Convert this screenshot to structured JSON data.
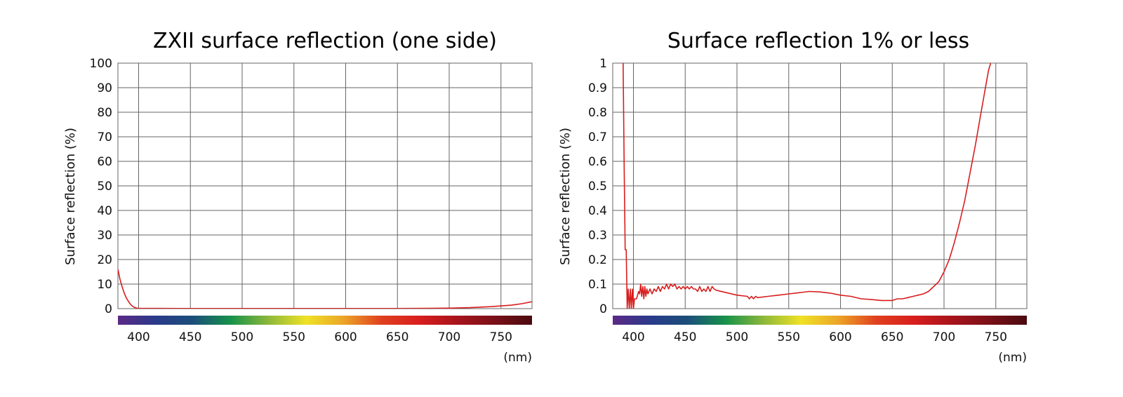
{
  "chart_data": [
    {
      "type": "line",
      "title": "ZXII surface reflection (one side)",
      "ylabel": "Surface reflection (%)",
      "xunit": "(nm)",
      "xlim": [
        380,
        780
      ],
      "ylim": [
        0,
        100
      ],
      "xticks": [
        400,
        450,
        500,
        550,
        600,
        650,
        700,
        750
      ],
      "yticks": [
        0,
        10,
        20,
        30,
        40,
        50,
        60,
        70,
        80,
        90,
        100
      ],
      "grid": true,
      "color": "#d81e1e",
      "spectrum_bar": true,
      "series": [
        {
          "x": [
            380,
            382,
            384,
            386,
            388,
            390,
            392,
            394,
            396,
            398,
            400,
            450,
            500,
            550,
            600,
            650,
            680,
            700,
            720,
            740,
            760,
            770,
            780
          ],
          "y": [
            16,
            12,
            9,
            6.5,
            4.5,
            3,
            1.8,
            1,
            0.5,
            0.2,
            0.1,
            0.05,
            0.05,
            0.05,
            0.05,
            0.05,
            0.1,
            0.2,
            0.4,
            0.8,
            1.4,
            2,
            2.8
          ]
        }
      ]
    },
    {
      "type": "line",
      "title": "Surface reflection 1% or less",
      "ylabel": "Surface reflection (%)",
      "xunit": "(nm)",
      "xlim": [
        380,
        780
      ],
      "ylim": [
        0,
        1
      ],
      "xticks": [
        400,
        450,
        500,
        550,
        600,
        650,
        700,
        750
      ],
      "yticks": [
        0,
        0.1,
        0.2,
        0.3,
        0.4,
        0.5,
        0.6,
        0.7,
        0.8,
        0.9,
        1
      ],
      "grid": true,
      "color": "#d81e1e",
      "spectrum_bar": true,
      "series": [
        {
          "x": [
            390,
            391,
            392,
            393,
            394,
            395,
            396,
            397,
            398,
            399,
            400,
            401,
            403,
            405,
            406,
            407,
            408,
            409,
            410,
            411,
            412,
            413,
            414,
            416,
            418,
            420,
            422,
            424,
            426,
            428,
            430,
            432,
            434,
            436,
            438,
            440,
            442,
            444,
            446,
            448,
            450,
            452,
            454,
            456,
            458,
            460,
            462,
            464,
            466,
            468,
            470,
            472,
            474,
            476,
            478,
            480,
            490,
            500,
            510,
            512,
            514,
            516,
            518,
            520,
            530,
            540,
            550,
            560,
            570,
            580,
            590,
            600,
            610,
            620,
            630,
            640,
            650,
            655,
            660,
            665,
            670,
            675,
            680,
            685,
            690,
            695,
            700,
            705,
            710,
            715,
            720,
            725,
            730,
            735,
            740,
            743,
            745
          ],
          "y": [
            1.0,
            0.6,
            0.24,
            0.24,
            0.0,
            0.08,
            0.0,
            0.08,
            0.0,
            0.08,
            0.0,
            0.04,
            0.04,
            0.07,
            0.06,
            0.1,
            0.05,
            0.09,
            0.04,
            0.09,
            0.05,
            0.08,
            0.06,
            0.08,
            0.06,
            0.08,
            0.07,
            0.09,
            0.07,
            0.09,
            0.08,
            0.1,
            0.08,
            0.1,
            0.09,
            0.1,
            0.08,
            0.09,
            0.08,
            0.09,
            0.08,
            0.09,
            0.08,
            0.09,
            0.08,
            0.08,
            0.07,
            0.09,
            0.07,
            0.08,
            0.07,
            0.09,
            0.07,
            0.09,
            0.08,
            0.075,
            0.065,
            0.055,
            0.05,
            0.04,
            0.05,
            0.04,
            0.05,
            0.045,
            0.05,
            0.055,
            0.06,
            0.065,
            0.07,
            0.068,
            0.063,
            0.055,
            0.05,
            0.04,
            0.037,
            0.033,
            0.033,
            0.04,
            0.04,
            0.045,
            0.05,
            0.055,
            0.06,
            0.07,
            0.09,
            0.11,
            0.15,
            0.2,
            0.27,
            0.35,
            0.44,
            0.55,
            0.66,
            0.78,
            0.9,
            0.97,
            1.0
          ]
        }
      ]
    }
  ],
  "spectrum_colors": [
    "#5b2a86",
    "#2a3a8a",
    "#1b4f7a",
    "#17924a",
    "#8cb83a",
    "#efe226",
    "#eca428",
    "#e0401e",
    "#d81e1e",
    "#a8141c",
    "#7a1018",
    "#4a0a10"
  ]
}
